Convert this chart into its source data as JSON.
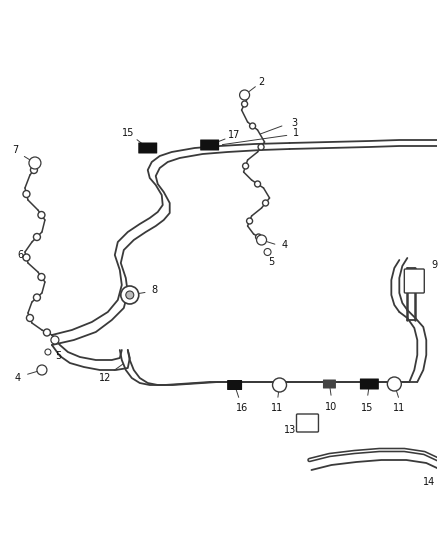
{
  "background_color": "#ffffff",
  "line_color": "#3a3a3a",
  "figsize": [
    4.38,
    5.33
  ],
  "dpi": 100,
  "lw_main": 1.3,
  "lw_hose": 1.1,
  "label_fs": 7.0
}
